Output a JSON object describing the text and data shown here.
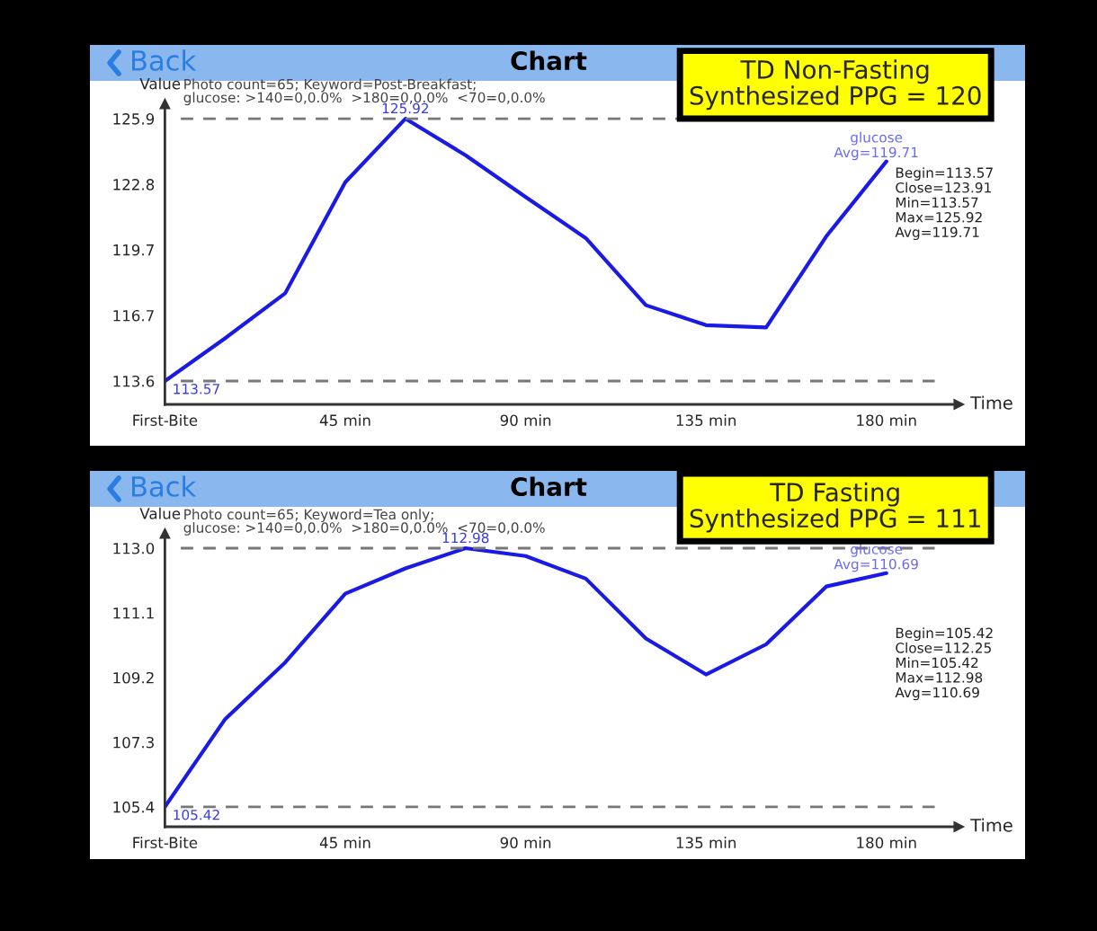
{
  "chart_data": [
    {
      "type": "line",
      "xlabel": "Time",
      "ylabel": "Value",
      "x": [
        0,
        15,
        30,
        45,
        60,
        75,
        90,
        105,
        120,
        135,
        150,
        165,
        180
      ],
      "series": [
        {
          "name": "glucose",
          "color": "#1a1ae6",
          "values": [
            113.57,
            115.58,
            117.7,
            122.93,
            125.92,
            124.2,
            122.23,
            120.3,
            117.14,
            116.2,
            116.09,
            120.38,
            123.91
          ]
        }
      ],
      "xlim": [
        0,
        198
      ],
      "ylim": [
        112.47,
        126.6
      ],
      "xticks": [
        {
          "value": 0,
          "label": "First-Bite"
        },
        {
          "value": 45,
          "label": "45 min"
        },
        {
          "value": 90,
          "label": "90 min"
        },
        {
          "value": 135,
          "label": "135 min"
        },
        {
          "value": 180,
          "label": "180 min"
        }
      ],
      "yticks": [
        {
          "value": 113.57,
          "label": "113.6"
        },
        {
          "value": 116.66,
          "label": "116.7"
        },
        {
          "value": 119.75,
          "label": "119.7"
        },
        {
          "value": 122.83,
          "label": "122.8"
        },
        {
          "value": 125.92,
          "label": "125.9"
        }
      ],
      "ref_lines": [
        {
          "axis": "y",
          "value": 125.92,
          "color": "#777777",
          "line_style": "dashed"
        },
        {
          "axis": "y",
          "value": 113.57,
          "color": "#777777",
          "line_style": "dashed"
        }
      ],
      "annotations": [
        "Back",
        "Chart",
        "Photo count=65; Keyword=Post-Breakfast;\nglucose: >140=0,0.0%  >180=0,0.0%  <70=0,0.0%",
        "TD Non-Fasting\nSynthesized PPG = 120",
        "Begin=113.57\nClose=123.91\nMin=113.57\nMax=125.92\nAvg=119.71",
        "Avg=119.71",
        {
          "text": "125.92",
          "x": 60,
          "y": 125.92
        },
        {
          "text": "113.57",
          "x": 0,
          "y": 113.57
        }
      ],
      "grid": false,
      "legend": false,
      "marker": "none",
      "line_style": "solid"
    },
    {
      "type": "line",
      "xlabel": "Time",
      "ylabel": "Value",
      "x": [
        0,
        15,
        30,
        45,
        60,
        75,
        90,
        105,
        120,
        135,
        150,
        165,
        180
      ],
      "series": [
        {
          "name": "glucose",
          "color": "#1a1ae6",
          "values": [
            105.42,
            107.98,
            109.64,
            111.65,
            112.39,
            112.98,
            112.75,
            112.09,
            110.34,
            109.29,
            110.17,
            111.86,
            112.25
          ]
        }
      ],
      "xlim": [
        0,
        198
      ],
      "ylim": [
        104.84,
        113.4
      ],
      "xticks": [
        {
          "value": 0,
          "label": "First-Bite"
        },
        {
          "value": 45,
          "label": "45 min"
        },
        {
          "value": 90,
          "label": "90 min"
        },
        {
          "value": 135,
          "label": "135 min"
        },
        {
          "value": 180,
          "label": "180 min"
        }
      ],
      "yticks": [
        {
          "value": 105.42,
          "label": "105.4"
        },
        {
          "value": 107.31,
          "label": "107.3"
        },
        {
          "value": 109.2,
          "label": "109.2"
        },
        {
          "value": 111.09,
          "label": "111.1"
        },
        {
          "value": 112.98,
          "label": "113.0"
        }
      ],
      "ref_lines": [
        {
          "axis": "y",
          "value": 112.98,
          "color": "#777777",
          "line_style": "dashed"
        },
        {
          "axis": "y",
          "value": 105.42,
          "color": "#777777",
          "line_style": "dashed"
        }
      ],
      "annotations": [
        "Back",
        "Chart",
        "Photo count=65; Keyword=Tea only;\nglucose: >140=0,0.0%  >180=0,0.0%  <70=0,0.0%",
        "TD Fasting\nSynthesized PPG = 111",
        "Begin=105.42\nClose=112.25\nMin=105.42\nMax=112.98\nAvg=110.69",
        "Avg=110.69",
        {
          "text": "112.98",
          "x": 75,
          "y": 112.98
        },
        {
          "text": "105.42",
          "x": 0,
          "y": 105.42
        }
      ],
      "grid": false,
      "legend": false,
      "marker": "none",
      "line_style": "solid"
    }
  ]
}
